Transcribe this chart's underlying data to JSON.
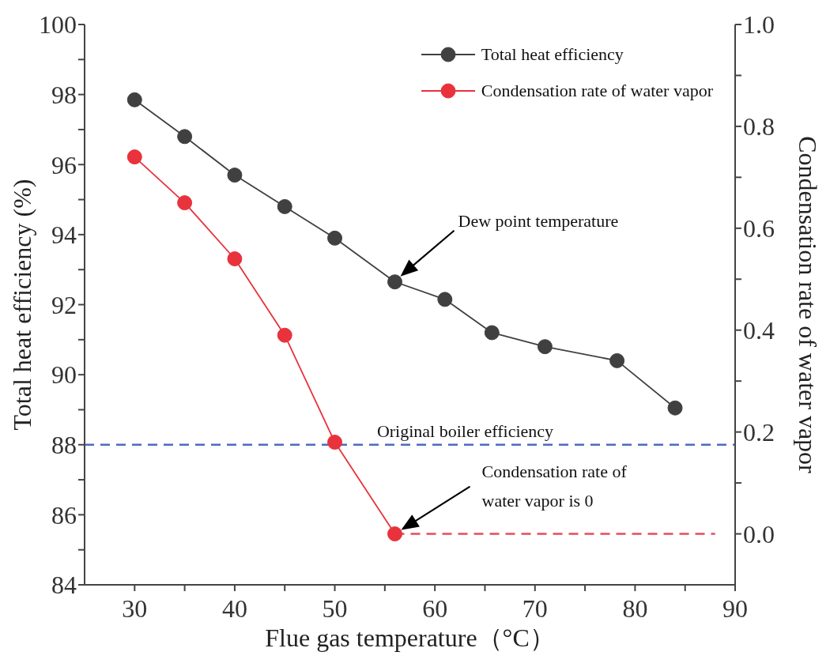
{
  "chart_data": {
    "type": "line",
    "xlabel": "Flue gas temperature（°C）",
    "ylabel": "Total heat efficiency  (%)",
    "y2label": "Condensation rate of water vapor",
    "xlim": [
      25,
      90
    ],
    "xticks": [
      30,
      {
        "value": 35,
        "label": null
      },
      40,
      {
        "value": 45,
        "label": null
      },
      50,
      {
        "value": 55,
        "label": null
      },
      60,
      {
        "value": 65,
        "label": null
      },
      70,
      {
        "value": 75,
        "label": null
      },
      80,
      {
        "value": 85,
        "label": null
      },
      90
    ],
    "ylim": [
      84,
      100
    ],
    "yticks": [
      84,
      {
        "value": 85,
        "label": null
      },
      86,
      {
        "value": 87,
        "label": null
      },
      88,
      {
        "value": 89,
        "label": null
      },
      90,
      {
        "value": 91,
        "label": null
      },
      92,
      {
        "value": 93,
        "label": null
      },
      94,
      {
        "value": 95,
        "label": null
      },
      96,
      {
        "value": 97,
        "label": null
      },
      98,
      {
        "value": 99,
        "label": null
      },
      100
    ],
    "y2lim": [
      -0.1,
      1.0
    ],
    "y2ticks": [
      {
        "value": 0,
        "label": "0.0"
      },
      {
        "value": 0.1,
        "label": null
      },
      0.2,
      {
        "value": 0.3,
        "label": null
      },
      0.4,
      {
        "value": 0.5,
        "label": null
      },
      0.6,
      {
        "value": 0.7,
        "label": null
      },
      0.8,
      {
        "value": 0.9,
        "label": null
      },
      {
        "value": 1,
        "label": "1.0"
      }
    ],
    "series": [
      {
        "name": "Total heat efficiency",
        "color": "#404040",
        "x": [
          30,
          35,
          40,
          45,
          50,
          56,
          61,
          65.7,
          71,
          78.2,
          84
        ],
        "values": [
          97.85,
          96.8,
          95.7,
          94.8,
          93.9,
          92.65,
          92.15,
          91.2,
          90.8,
          90.4,
          89.05
        ]
      },
      {
        "name": "Condensation rate of water vapor",
        "color": "#e8323c",
        "axis": "y2",
        "x": [
          30,
          35,
          40,
          45,
          50,
          56
        ],
        "values": [
          0.74,
          0.65,
          0.54,
          0.39,
          0.18,
          0
        ]
      },
      {
        "color": "#e84a5f",
        "axis": "y2",
        "x": [
          56,
          88
        ],
        "values": [
          0,
          0
        ],
        "marker": "none",
        "line_style": "dashed"
      }
    ],
    "ref_lines": [
      {
        "axis": "y",
        "value": 88,
        "label": "Original boiler efficiency",
        "color": "#4a6cc0",
        "line_style": "dashed"
      }
    ],
    "annotations": [
      "Dew point temperature",
      "Condensation rate of water vapor is 0"
    ],
    "marker": "circle",
    "line_style": "solid",
    "grid": false,
    "legend": "top right"
  }
}
